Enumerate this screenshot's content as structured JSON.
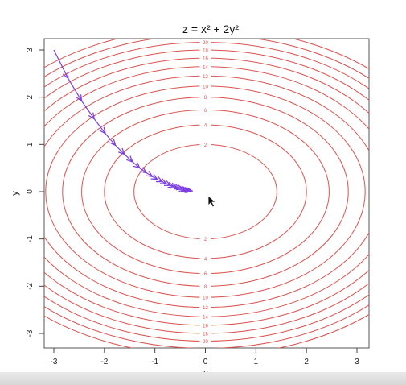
{
  "chart_data": {
    "type": "contour",
    "title": "z = x² + 2y²",
    "xlabel": "x",
    "ylabel": "y",
    "xlim": [
      -3,
      3
    ],
    "ylim": [
      -3,
      3
    ],
    "x_ticks": [
      "-3",
      "-2",
      "-1",
      "0",
      "1",
      "2",
      "3"
    ],
    "y_ticks": [
      "-3",
      "-2",
      "-1",
      "0",
      "1",
      "2",
      "3"
    ],
    "contour_levels": [
      2,
      4,
      6,
      8,
      10,
      12,
      14,
      16,
      18,
      20,
      22,
      24
    ],
    "contour_color": "#d9534f",
    "path_color": "#7b3fe4",
    "descent_path": [
      {
        "x": -3.0,
        "y": 3.0
      },
      {
        "x": -2.72,
        "y": 2.4
      },
      {
        "x": -2.45,
        "y": 1.92
      },
      {
        "x": -2.2,
        "y": 1.54
      },
      {
        "x": -1.98,
        "y": 1.23
      },
      {
        "x": -1.78,
        "y": 0.98
      },
      {
        "x": -1.6,
        "y": 0.79
      },
      {
        "x": -1.44,
        "y": 0.63
      },
      {
        "x": -1.3,
        "y": 0.5
      },
      {
        "x": -1.17,
        "y": 0.4
      },
      {
        "x": -1.05,
        "y": 0.32
      },
      {
        "x": -0.95,
        "y": 0.26
      },
      {
        "x": -0.85,
        "y": 0.21
      },
      {
        "x": -0.77,
        "y": 0.17
      },
      {
        "x": -0.69,
        "y": 0.13
      },
      {
        "x": -0.62,
        "y": 0.11
      },
      {
        "x": -0.56,
        "y": 0.09
      },
      {
        "x": -0.5,
        "y": 0.07
      },
      {
        "x": -0.45,
        "y": 0.05
      },
      {
        "x": -0.4,
        "y": 0.04
      },
      {
        "x": -0.36,
        "y": 0.03
      },
      {
        "x": -0.33,
        "y": 0.025
      },
      {
        "x": -0.29,
        "y": 0.02
      },
      {
        "x": -0.26,
        "y": 0.015
      }
    ]
  }
}
